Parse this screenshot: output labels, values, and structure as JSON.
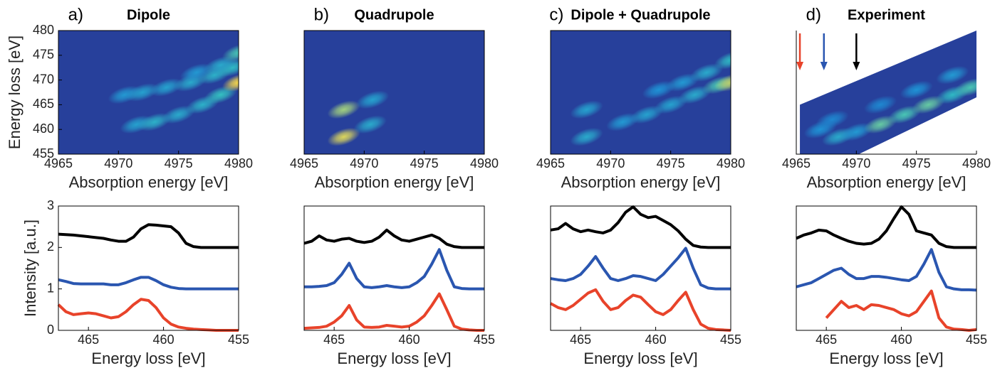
{
  "chart_data": [
    {
      "type": "heatmap",
      "label": "a)",
      "title": "Dipole",
      "xlabel": "Absorption energy [eV]",
      "ylabel": "Energy loss [eV]",
      "xlim": [
        4965,
        4980
      ],
      "xticks": [
        4965,
        4970,
        4975,
        4980
      ],
      "ylim": [
        455,
        480
      ],
      "yticks": [
        455,
        460,
        465,
        470,
        475,
        480
      ],
      "colormap": [
        "#27409b",
        "#1e8fd6",
        "#35c3c0",
        "#f9d94a"
      ],
      "box": true,
      "x": [
        4970.5,
        4972,
        4974,
        4976,
        4978,
        4979.5,
        4971.5,
        4973,
        4975,
        4977,
        4978.5,
        4980,
        4976.5,
        4978.5,
        4980
      ],
      "y": [
        467,
        467.5,
        468.5,
        469.5,
        471,
        472.5,
        461,
        461.5,
        463,
        465,
        467,
        469.5,
        471.5,
        473,
        475.5
      ],
      "z": [
        0.4,
        0.45,
        0.45,
        0.5,
        0.55,
        0.6,
        0.45,
        0.55,
        0.5,
        0.55,
        0.65,
        1.0,
        0.4,
        0.5,
        0.7
      ]
    },
    {
      "type": "heatmap",
      "label": "b)",
      "title": "Quadrupole",
      "xlabel": "Absorption energy [eV]",
      "xlim": [
        4965,
        4980
      ],
      "xticks": [
        4965,
        4970,
        4975,
        4980
      ],
      "ylim": [
        455,
        480
      ],
      "colormap": [
        "#27409b",
        "#1e8fd6",
        "#35c3c0",
        "#f9d94a"
      ],
      "box": true,
      "x": [
        4968.3,
        4968.3,
        4970.5,
        4970.7
      ],
      "y": [
        458.5,
        464,
        461,
        466
      ],
      "z": [
        0.95,
        0.85,
        0.5,
        0.45
      ]
    },
    {
      "type": "heatmap",
      "label": "c)",
      "title": "Dipole + Quadrupole",
      "xlabel": "Absorption energy [eV]",
      "xlim": [
        4965,
        4980
      ],
      "xticks": [
        4965,
        4970,
        4975,
        4980
      ],
      "ylim": [
        455,
        480
      ],
      "colormap": [
        "#27409b",
        "#1e8fd6",
        "#35c3c0",
        "#f9d94a"
      ],
      "box": true,
      "x": [
        4968,
        4968,
        4971,
        4973,
        4975,
        4977,
        4979,
        4980,
        4974,
        4976,
        4978,
        4980
      ],
      "y": [
        458.5,
        464,
        461.5,
        463,
        465,
        467,
        469,
        469.5,
        468,
        469.5,
        471.5,
        474
      ],
      "z": [
        0.5,
        0.45,
        0.4,
        0.45,
        0.45,
        0.5,
        0.7,
        0.9,
        0.35,
        0.4,
        0.5,
        0.6
      ]
    },
    {
      "type": "heatmap",
      "label": "d)",
      "title": "Experiment",
      "xlabel": "Absorption energy [eV]",
      "xlim": [
        4965,
        4980
      ],
      "xticks": [
        4965,
        4970,
        4975,
        4980
      ],
      "ylim": [
        455,
        480
      ],
      "colormap": [
        "#27409b",
        "#1e8fd6",
        "#35c3c0",
        "#f9d94a"
      ],
      "box": false,
      "x": [
        4967,
        4968.5,
        4970,
        4972,
        4974,
        4976,
        4978,
        4979.5,
        4968,
        4972,
        4975,
        4978
      ],
      "y": [
        460,
        458.5,
        459.5,
        461,
        463,
        465,
        467,
        468.5,
        462,
        465,
        468,
        471
      ],
      "z": [
        0.35,
        0.5,
        0.4,
        0.75,
        0.7,
        0.75,
        0.6,
        0.7,
        0.3,
        0.3,
        0.35,
        0.4
      ],
      "region": {
        "x": [
          4965.3,
          4965.3,
          4980,
          4980,
          4970.2
        ],
        "y": [
          455,
          465,
          480,
          466.5,
          455
        ]
      },
      "arrows": {
        "x": [
          4965.3,
          4967.3,
          4970
        ],
        "colors": [
          "#e8432a",
          "#2a56b0",
          "#000000"
        ]
      }
    },
    {
      "type": "line",
      "xlabel": "Energy loss [eV]",
      "ylabel": "Intensity [a.u.]",
      "xlim": [
        467,
        455
      ],
      "xticks": [
        465,
        460,
        455
      ],
      "ylim": [
        0,
        3
      ],
      "yticks": [
        0,
        1,
        2,
        3
      ],
      "box": true,
      "x": [
        467,
        466.5,
        466,
        465.5,
        465,
        464.5,
        464,
        463.5,
        463,
        462.5,
        462,
        461.5,
        461,
        460.5,
        460,
        459.5,
        459,
        458.5,
        458,
        457.5,
        457,
        456.5,
        456,
        455.5,
        455
      ],
      "series": [
        {
          "color": "#000000",
          "values": [
            2.32,
            2.31,
            2.3,
            2.28,
            2.26,
            2.24,
            2.22,
            2.18,
            2.15,
            2.15,
            2.25,
            2.45,
            2.55,
            2.54,
            2.52,
            2.5,
            2.35,
            2.1,
            2.02,
            2.0,
            2.0,
            2.0,
            2.0,
            2.0,
            2.0
          ]
        },
        {
          "color": "#2a56b0",
          "values": [
            1.22,
            1.18,
            1.13,
            1.12,
            1.12,
            1.12,
            1.12,
            1.1,
            1.1,
            1.15,
            1.22,
            1.28,
            1.28,
            1.2,
            1.1,
            1.04,
            1.01,
            1.0,
            1.0,
            1.0,
            1.0,
            1.0,
            1.0,
            1.0,
            1.0
          ]
        },
        {
          "color": "#e8432a",
          "values": [
            0.62,
            0.45,
            0.38,
            0.4,
            0.42,
            0.4,
            0.35,
            0.3,
            0.33,
            0.45,
            0.62,
            0.75,
            0.72,
            0.55,
            0.3,
            0.15,
            0.08,
            0.05,
            0.03,
            0.02,
            0.01,
            0,
            0,
            0,
            0
          ]
        }
      ]
    },
    {
      "type": "line",
      "xlabel": "Energy loss [eV]",
      "xlim": [
        467,
        455
      ],
      "xticks": [
        465,
        460,
        455
      ],
      "ylim": [
        0,
        3
      ],
      "box": true,
      "x": [
        467,
        466.5,
        466,
        465.5,
        465,
        464.5,
        464,
        463.5,
        463,
        462.5,
        462,
        461.5,
        461,
        460.5,
        460,
        459.5,
        459,
        458.5,
        458,
        457.5,
        457,
        456.5,
        456,
        455.5,
        455
      ],
      "series": [
        {
          "color": "#000000",
          "values": [
            2.1,
            2.15,
            2.28,
            2.18,
            2.15,
            2.2,
            2.22,
            2.15,
            2.12,
            2.15,
            2.25,
            2.42,
            2.28,
            2.18,
            2.15,
            2.2,
            2.25,
            2.3,
            2.22,
            2.08,
            2.02,
            2.0,
            2.0,
            2.0,
            2.0
          ]
        },
        {
          "color": "#2a56b0",
          "values": [
            1.05,
            1.05,
            1.06,
            1.08,
            1.15,
            1.35,
            1.62,
            1.25,
            1.05,
            1.03,
            1.05,
            1.08,
            1.05,
            1.03,
            1.05,
            1.15,
            1.3,
            1.6,
            1.95,
            1.45,
            1.05,
            1.01,
            1.0,
            1.0,
            1.0
          ]
        },
        {
          "color": "#e8432a",
          "values": [
            0.05,
            0.06,
            0.07,
            0.1,
            0.2,
            0.35,
            0.6,
            0.25,
            0.08,
            0.07,
            0.08,
            0.12,
            0.1,
            0.08,
            0.1,
            0.2,
            0.35,
            0.6,
            0.88,
            0.5,
            0.1,
            0.03,
            0.01,
            0,
            0
          ]
        }
      ]
    },
    {
      "type": "line",
      "xlabel": "Energy loss [eV]",
      "xlim": [
        467,
        455
      ],
      "xticks": [
        465,
        460,
        455
      ],
      "ylim": [
        0,
        3
      ],
      "box": true,
      "x": [
        467,
        466.5,
        466,
        465.5,
        465,
        464.5,
        464,
        463.5,
        463,
        462.5,
        462,
        461.5,
        461,
        460.5,
        460,
        459.5,
        459,
        458.5,
        458,
        457.5,
        457,
        456.5,
        456,
        455.5,
        455
      ],
      "series": [
        {
          "color": "#000000",
          "values": [
            2.42,
            2.45,
            2.58,
            2.45,
            2.38,
            2.42,
            2.38,
            2.35,
            2.42,
            2.6,
            2.85,
            2.98,
            2.8,
            2.72,
            2.75,
            2.65,
            2.55,
            2.4,
            2.2,
            2.05,
            2.01,
            2.0,
            2.0,
            2.0,
            2.0
          ]
        },
        {
          "color": "#2a56b0",
          "values": [
            1.25,
            1.22,
            1.2,
            1.25,
            1.35,
            1.55,
            1.78,
            1.5,
            1.25,
            1.2,
            1.25,
            1.32,
            1.3,
            1.25,
            1.2,
            1.35,
            1.55,
            1.75,
            1.98,
            1.5,
            1.1,
            1.02,
            1.0,
            1.0,
            1.0
          ]
        },
        {
          "color": "#e8432a",
          "values": [
            0.65,
            0.55,
            0.5,
            0.6,
            0.75,
            0.9,
            0.98,
            0.7,
            0.5,
            0.55,
            0.72,
            0.85,
            0.8,
            0.62,
            0.45,
            0.38,
            0.5,
            0.72,
            0.92,
            0.5,
            0.15,
            0.05,
            0.02,
            0.01,
            0
          ]
        }
      ]
    },
    {
      "type": "line",
      "xlabel": "Energy loss [eV]",
      "xlim": [
        467,
        455
      ],
      "xticks": [
        465,
        460,
        455
      ],
      "ylim": [
        0,
        3
      ],
      "box": true,
      "x": [
        467,
        466.5,
        466,
        465.5,
        465,
        464.5,
        464,
        463.5,
        463,
        462.5,
        462,
        461.5,
        461,
        460.5,
        460,
        459.5,
        459,
        458.5,
        458,
        457.5,
        457,
        456.5,
        456,
        455.5,
        455
      ],
      "series": [
        {
          "color": "#000000",
          "values": [
            2.22,
            2.3,
            2.35,
            2.42,
            2.4,
            2.3,
            2.22,
            2.15,
            2.1,
            2.08,
            2.1,
            2.2,
            2.4,
            2.7,
            2.98,
            2.8,
            2.4,
            2.35,
            2.3,
            2.1,
            2.02,
            2.0,
            2.0,
            2.0,
            2.0
          ]
        },
        {
          "color": "#2a56b0",
          "values": [
            1.05,
            1.1,
            1.15,
            1.25,
            1.35,
            1.45,
            1.5,
            1.35,
            1.25,
            1.25,
            1.3,
            1.3,
            1.28,
            1.25,
            1.22,
            1.2,
            1.3,
            1.6,
            1.95,
            1.4,
            1.05,
            1.0,
            0.98,
            0.98,
            0.97
          ]
        },
        {
          "color": "#e8432a",
          "values": [
            null,
            null,
            null,
            null,
            0.3,
            0.5,
            0.7,
            0.55,
            0.6,
            0.5,
            0.62,
            0.6,
            0.55,
            0.5,
            0.4,
            0.35,
            0.45,
            0.7,
            0.95,
            0.3,
            0.08,
            0.03,
            0.02,
            0.0,
            0.02
          ]
        }
      ]
    }
  ]
}
